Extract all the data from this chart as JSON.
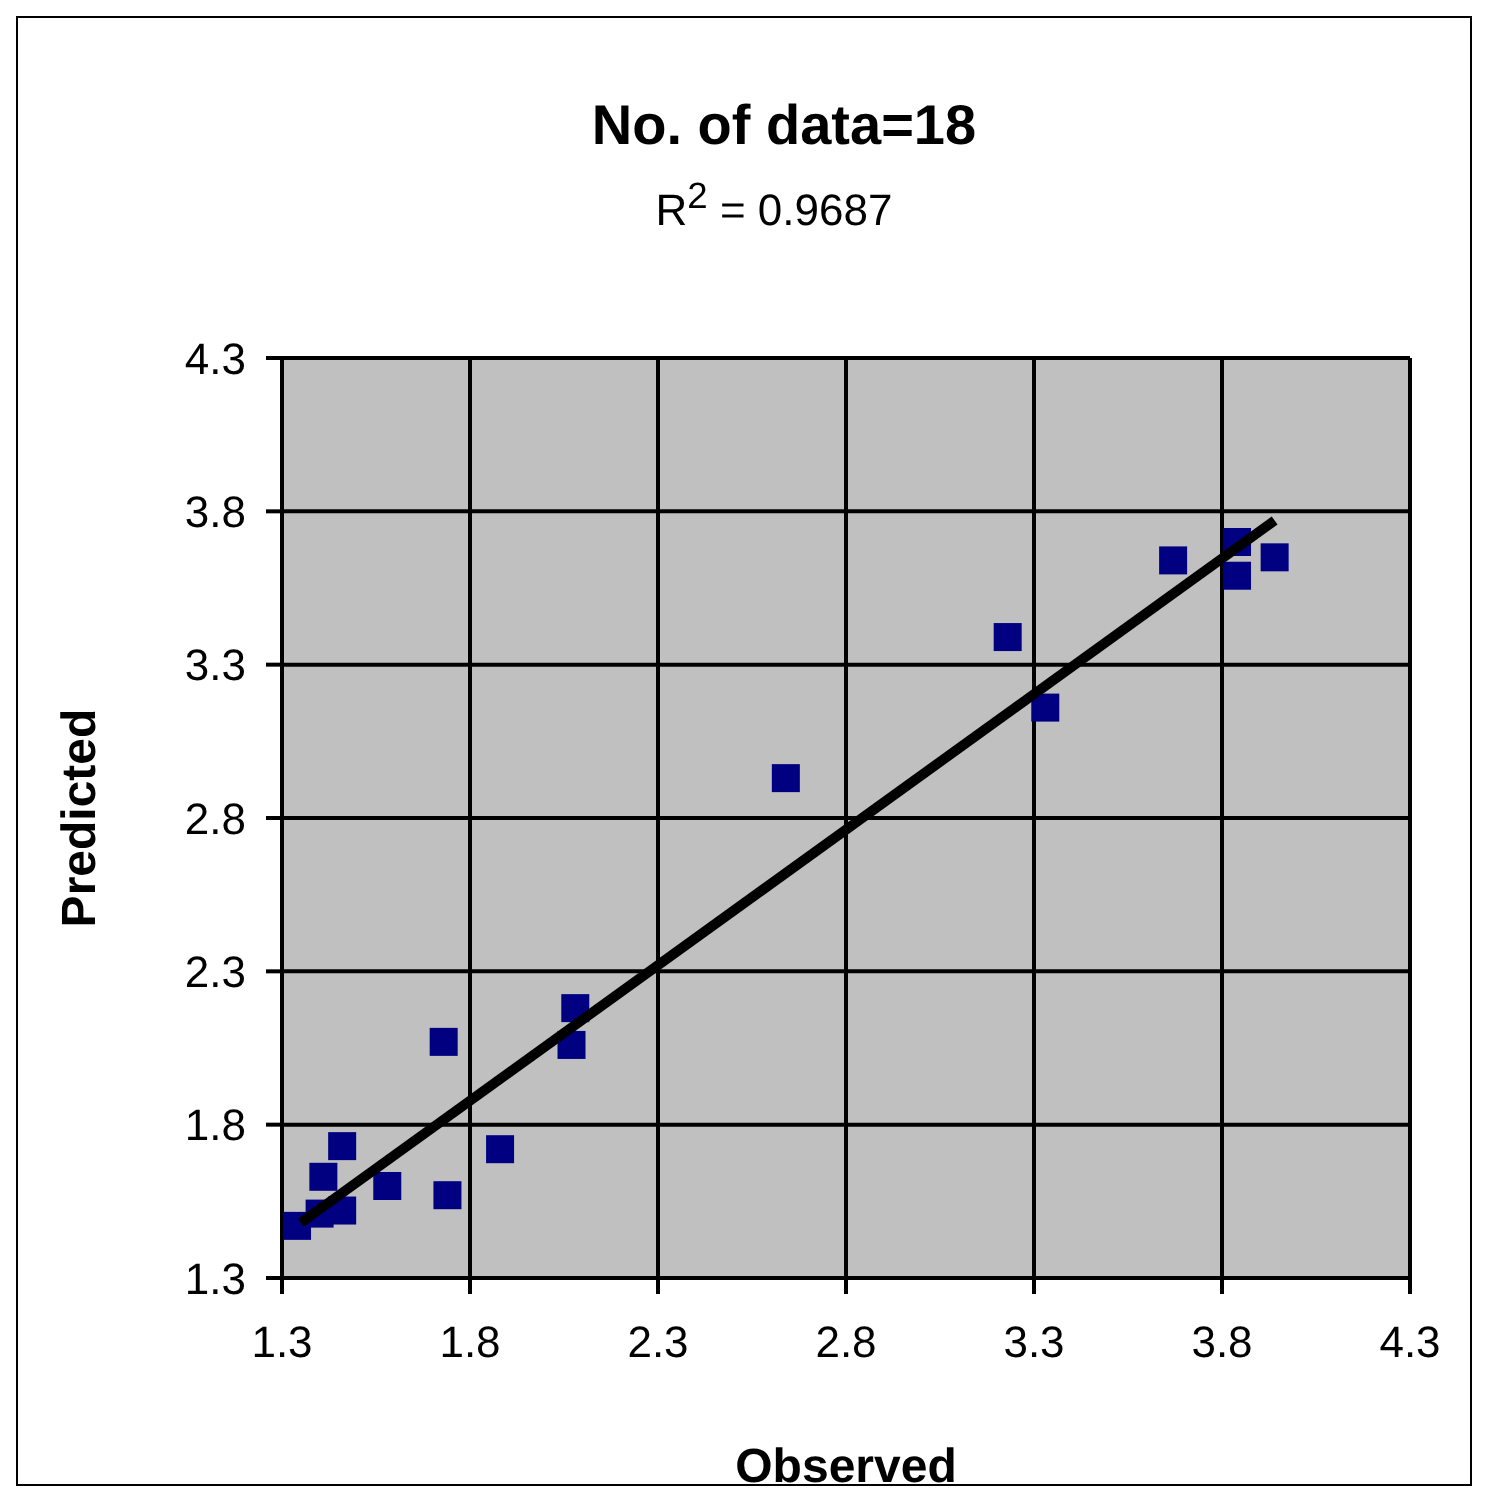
{
  "chart_data": {
    "type": "scatter",
    "title": "No. of data=18",
    "subtitle": "R$^{2}$ = 0.9687",
    "xlabel": "Observed",
    "ylabel": "Predicted",
    "x": [
      1.34,
      1.4,
      1.46,
      1.41,
      1.46,
      1.58,
      1.74,
      1.73,
      1.88,
      2.07,
      2.08,
      2.64,
      3.23,
      3.33,
      3.67,
      3.84,
      3.84,
      3.94
    ],
    "series": [
      {
        "color": "#000080",
        "marker": "square",
        "values": [
          1.47,
          1.51,
          1.52,
          1.63,
          1.73,
          1.6,
          1.57,
          2.07,
          1.72,
          2.06,
          2.18,
          2.93,
          3.39,
          3.16,
          3.64,
          3.7,
          3.59,
          3.65
        ]
      },
      {
        "type": "line",
        "color": "#000000",
        "x": [
          1.35,
          3.94
        ],
        "values": [
          1.48,
          3.77
        ]
      }
    ],
    "xlim": [
      1.3,
      4.3
    ],
    "xticks": [
      1.3,
      1.8,
      2.3,
      2.8,
      3.3,
      3.8,
      4.3
    ],
    "ylim": [
      1.3,
      4.3
    ],
    "yticks": [
      1.3,
      1.8,
      2.3,
      2.8,
      3.3,
      3.8,
      4.3
    ],
    "grid": true,
    "legend": false
  }
}
